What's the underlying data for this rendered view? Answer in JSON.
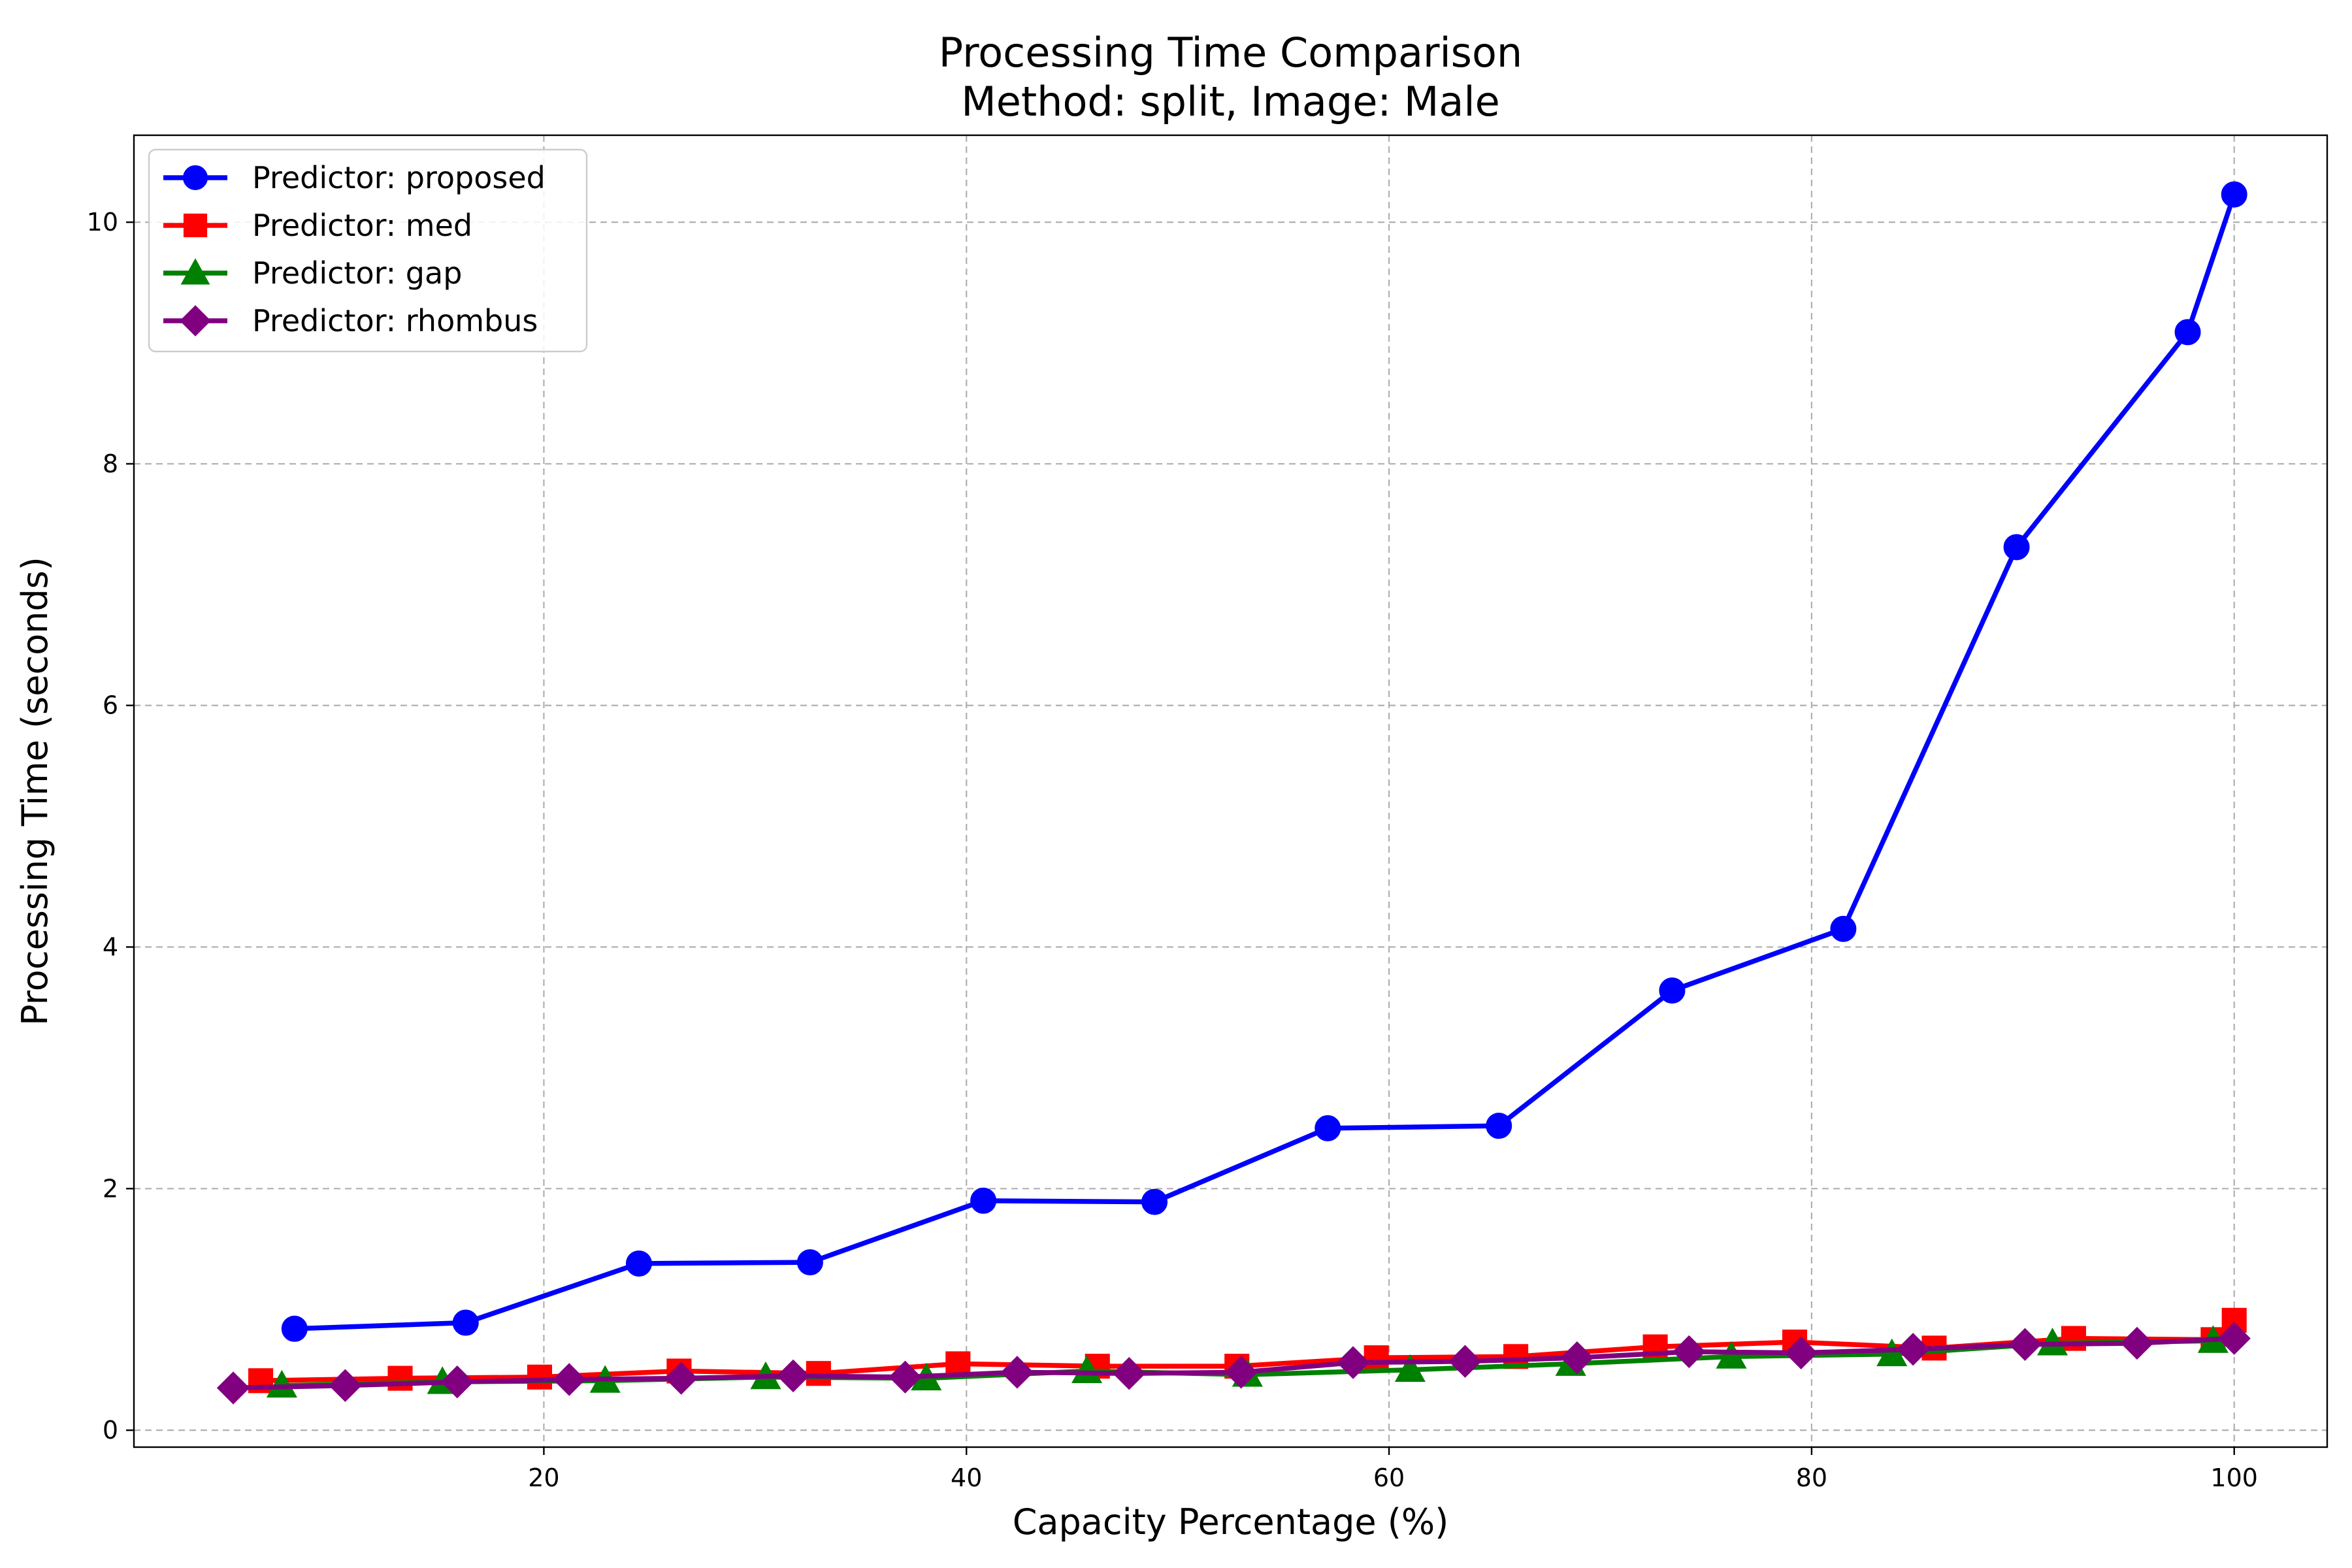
{
  "chart_data": {
    "type": "line",
    "title": "Processing Time Comparison",
    "subtitle": "Method: split, Image: Male",
    "xlabel": "Capacity Percentage (%)",
    "ylabel": "Processing Time (seconds)",
    "xlim": [
      0.6,
      104.4
    ],
    "ylim": [
      -0.14,
      10.72
    ],
    "xticks": [
      20,
      40,
      60,
      80,
      100
    ],
    "yticks": [
      0,
      2,
      4,
      6,
      8,
      10
    ],
    "grid": true,
    "legend_position": "top-left",
    "series": [
      {
        "name": "Predictor: proposed",
        "color": "#0000ff",
        "marker": "circle",
        "x": [
          8.2,
          16.3,
          24.5,
          32.6,
          40.8,
          48.9,
          57.1,
          65.2,
          73.4,
          81.5,
          89.7,
          97.8,
          100
        ],
        "y": [
          0.84,
          0.89,
          1.38,
          1.39,
          1.9,
          1.89,
          2.5,
          2.52,
          3.64,
          4.15,
          7.31,
          9.09,
          10.23
        ]
      },
      {
        "name": "Predictor: med",
        "color": "#ff0000",
        "marker": "square",
        "x": [
          6.6,
          13.2,
          19.8,
          26.4,
          33.0,
          39.6,
          46.2,
          52.8,
          59.4,
          66.0,
          72.6,
          79.2,
          85.8,
          92.4,
          99.0,
          100
        ],
        "y": [
          0.41,
          0.43,
          0.44,
          0.49,
          0.47,
          0.55,
          0.53,
          0.53,
          0.6,
          0.61,
          0.69,
          0.73,
          0.68,
          0.76,
          0.75,
          0.91
        ]
      },
      {
        "name": "Predictor: gap",
        "color": "#008000",
        "marker": "triangle",
        "x": [
          7.6,
          15.2,
          22.9,
          30.5,
          38.1,
          45.7,
          53.3,
          61.0,
          68.6,
          76.2,
          83.8,
          91.4,
          99.0
        ],
        "y": [
          0.37,
          0.4,
          0.41,
          0.44,
          0.43,
          0.49,
          0.46,
          0.5,
          0.55,
          0.61,
          0.63,
          0.72,
          0.74
        ]
      },
      {
        "name": "Predictor: rhombus",
        "color": "#800080",
        "marker": "diamond",
        "x": [
          5.3,
          10.6,
          15.9,
          21.2,
          26.5,
          31.8,
          37.1,
          42.4,
          47.7,
          53.0,
          58.3,
          63.6,
          68.9,
          74.2,
          79.5,
          84.8,
          90.1,
          95.4,
          100
        ],
        "y": [
          0.35,
          0.37,
          0.4,
          0.42,
          0.43,
          0.45,
          0.44,
          0.48,
          0.47,
          0.48,
          0.56,
          0.57,
          0.6,
          0.65,
          0.64,
          0.67,
          0.71,
          0.72,
          0.76
        ]
      }
    ]
  }
}
